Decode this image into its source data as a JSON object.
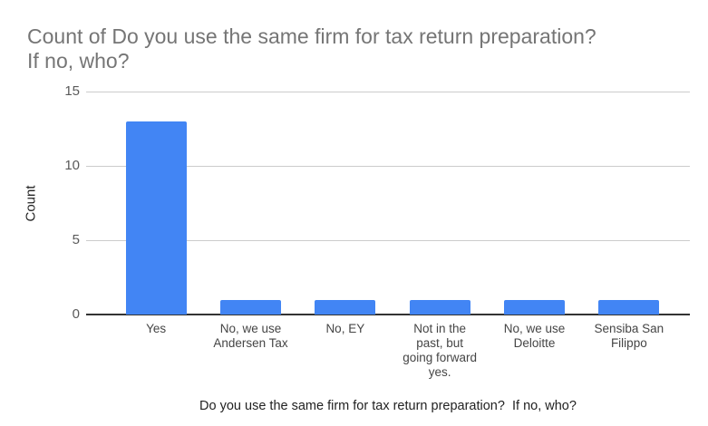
{
  "chart_title": {
    "lines": [
      "Count of Do you use the same firm for tax return preparation?",
      "If no, who?"
    ]
  },
  "chart_data": {
    "type": "bar",
    "title": "Count of Do you use the same firm for tax return preparation? If no, who?",
    "categories": [
      "Yes",
      "No, we use Andersen Tax",
      "No, EY",
      "Not in the past, but going forward yes.",
      "No, we use Deloitte",
      "Sensiba San Filippo"
    ],
    "category_label_lines": [
      [
        "Yes"
      ],
      [
        "No, we use",
        "Andersen Tax"
      ],
      [
        "No, EY"
      ],
      [
        "Not in the",
        "past, but",
        "going forward",
        "yes."
      ],
      [
        "No, we use",
        "Deloitte"
      ],
      [
        "Sensiba San",
        "Filippo"
      ]
    ],
    "values": [
      13,
      1,
      1,
      1,
      1,
      1
    ],
    "xlabel": "Do you use the same firm for tax return preparation?  If no, who?",
    "ylabel": "Count",
    "ylim": [
      0,
      15
    ],
    "yticks": [
      0,
      5,
      10,
      15
    ],
    "grid": true,
    "legend": "none",
    "bar_color": "#4285f4"
  },
  "colors": {
    "title_text": "#757575",
    "tick_text": "#5a5a5a",
    "category_text": "#454545",
    "axis_title_text": "#222222",
    "gridline": "#cccccc",
    "baseline": "#333333",
    "bar": "#4285f4",
    "background": "#ffffff"
  }
}
